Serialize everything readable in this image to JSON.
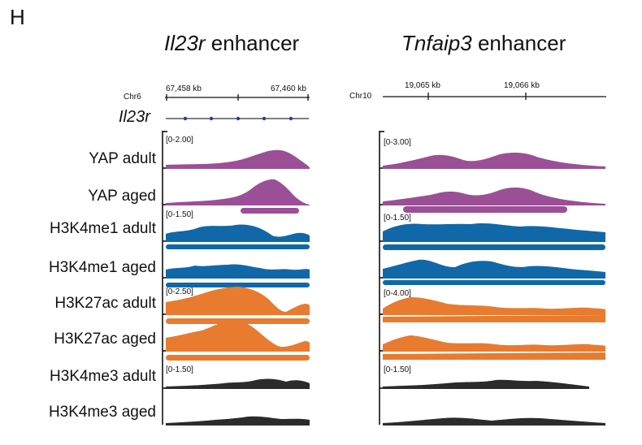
{
  "figure": {
    "panel_letter": "H",
    "left_panel": {
      "title_gene": "Il23r",
      "title_suffix": " enhancer",
      "chrom": "Chr6",
      "coord_left": "67,458 kb",
      "coord_right": "67,460 kb",
      "gene_label": "Il23r"
    },
    "right_panel": {
      "title_gene": "Tnfaip3",
      "title_suffix": " enhancer",
      "chrom": "Chr10",
      "coord_left": "19,065 kb",
      "coord_right": "19,066 kb"
    },
    "tracks": [
      {
        "label": "YAP adult",
        "range_left": "[0-2.00]",
        "range_right": "[0-3.00]"
      },
      {
        "label": "YAP aged"
      },
      {
        "label": "H3K4me1 adult",
        "range_left": "[0-1.50]",
        "range_right": "[0-1.50]"
      },
      {
        "label": "H3K4me1 aged"
      },
      {
        "label": "H3K27ac adult",
        "range_left": "[0-2.50]",
        "range_right": "[0-4.00]"
      },
      {
        "label": "H3K27ac aged"
      },
      {
        "label": "H3K4me3 adult",
        "range_left": "[0-1.50]",
        "range_right": "[0-1.50]"
      },
      {
        "label": "H3K4me3 aged"
      }
    ],
    "colors": {
      "yap": "#9b4f96",
      "h3k4me1": "#1168a8",
      "h3k27ac": "#e87b2f",
      "h3k4me3": "#2b2b2b"
    }
  }
}
